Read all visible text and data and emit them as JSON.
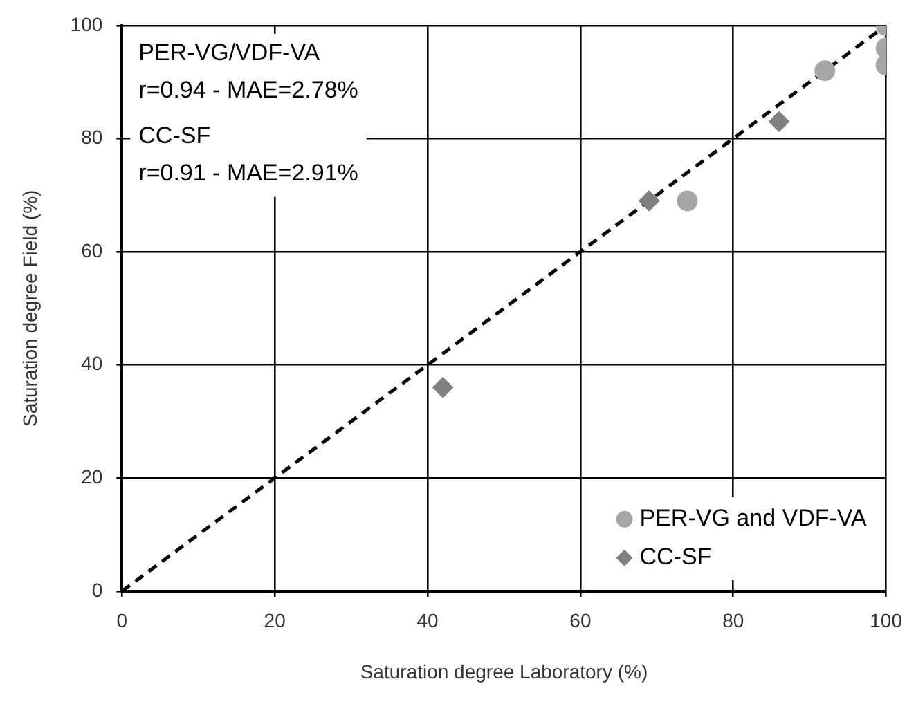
{
  "chart_data": {
    "type": "scatter",
    "xlabel": "Saturation degree Laboratory (%)",
    "ylabel": "Saturation degree Field (%)",
    "xlim": [
      0,
      100
    ],
    "xticks": [
      0,
      20,
      40,
      60,
      80,
      100
    ],
    "ylim": [
      0,
      100
    ],
    "yticks": [
      0,
      20,
      40,
      60,
      80,
      100
    ],
    "grid": true,
    "legend": "bottom right",
    "annotations": [
      "PER-VG/VDF-VA",
      "r=0.94 - MAE=2.78%",
      "CC-SF",
      "r=0.91 - MAE=2.91%"
    ],
    "series": [
      {
        "name": "PER-VG and VDF-VA",
        "color": "#a6a6a6",
        "marker": "circle",
        "x": [
          74,
          92,
          100,
          100,
          100
        ],
        "values": [
          69,
          92,
          100,
          96,
          93
        ]
      },
      {
        "name": "CC-SF",
        "color": "#808080",
        "marker": "diamond",
        "x": [
          42,
          69,
          86
        ],
        "values": [
          36,
          69,
          83
        ]
      },
      {
        "type": "line",
        "color": "#000000",
        "line_style": "dashed",
        "marker": "none",
        "x": [
          0,
          100
        ],
        "values": [
          0,
          100
        ]
      }
    ]
  }
}
